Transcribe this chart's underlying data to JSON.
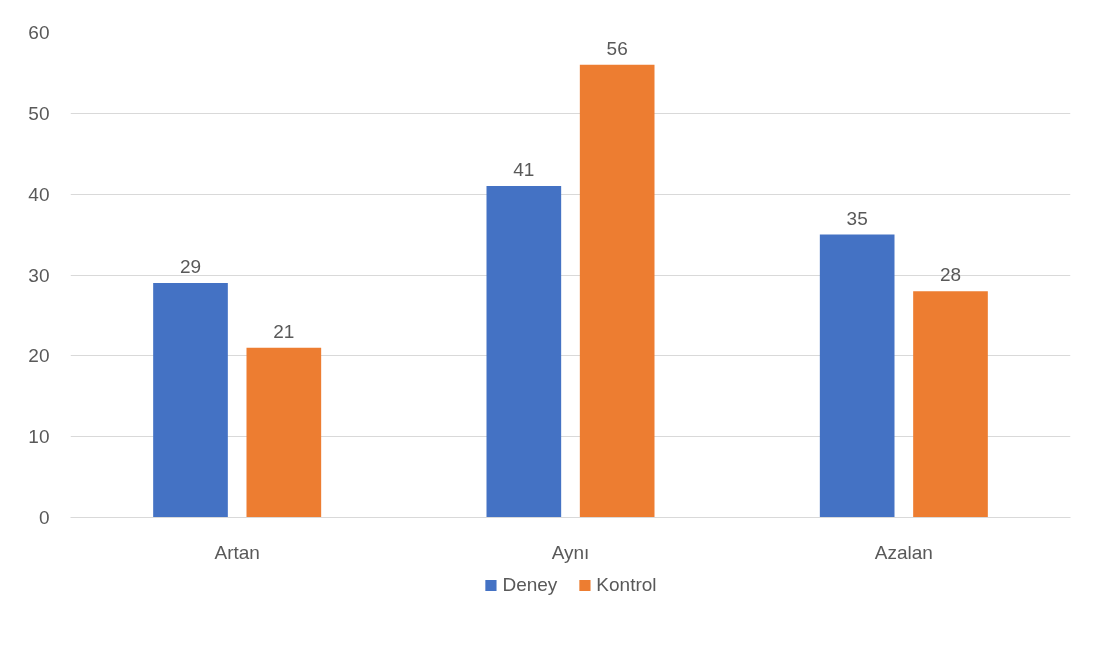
{
  "chart_data": {
    "type": "bar",
    "categories": [
      "Artan",
      "Aynı",
      "Azalan"
    ],
    "series": [
      {
        "name": "Deney",
        "color": "#4472c4",
        "values": [
          29,
          41,
          35
        ]
      },
      {
        "name": "Kontrol",
        "color": "#ed7d31",
        "values": [
          21,
          56,
          28
        ]
      }
    ],
    "ylim": [
      0,
      60
    ],
    "yticks": [
      0,
      10,
      20,
      30,
      40,
      50,
      60
    ],
    "grid": "y",
    "legend": "bottom",
    "data_labels": true
  }
}
